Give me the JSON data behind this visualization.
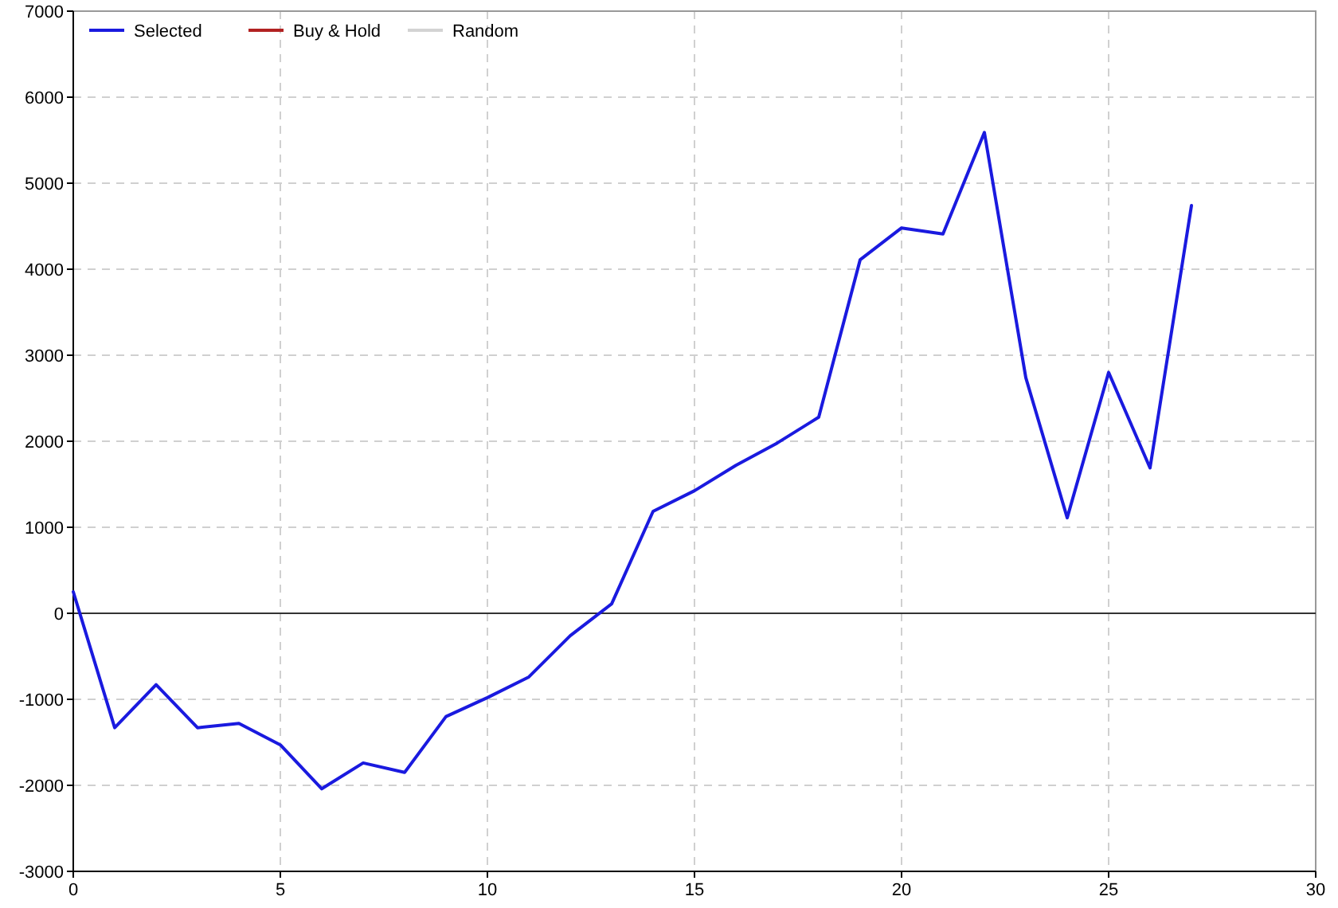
{
  "chart_data": {
    "type": "line",
    "x": [
      0,
      1,
      2,
      3,
      4,
      5,
      6,
      7,
      8,
      9,
      10,
      11,
      12,
      13,
      14,
      15,
      16,
      17,
      18,
      19,
      20,
      21,
      22,
      23,
      24,
      25,
      26,
      27
    ],
    "series": [
      {
        "name": "Selected",
        "color": "#1a1adf",
        "values": [
          250,
          -1330,
          -830,
          -1330,
          -1280,
          -1530,
          -2040,
          -1740,
          -1850,
          -1200,
          -980,
          -740,
          -260,
          110,
          1185,
          1425,
          1720,
          1980,
          2280,
          4110,
          4480,
          4410,
          5590,
          2740,
          1110,
          2800,
          1690,
          4740
        ]
      },
      {
        "name": "Buy & Hold",
        "color": "#b22222",
        "values": [
          null,
          null,
          null,
          null,
          null,
          null,
          null,
          null,
          null,
          null,
          null,
          null,
          null,
          null,
          null,
          null,
          null,
          null,
          null,
          null,
          null,
          null,
          null,
          null,
          null,
          null,
          null,
          null
        ]
      },
      {
        "name": "Random",
        "color": "#d3d3d3",
        "values": [
          null,
          null,
          null,
          null,
          null,
          null,
          null,
          null,
          null,
          null,
          null,
          null,
          null,
          null,
          null,
          null,
          null,
          null,
          null,
          null,
          null,
          null,
          null,
          null,
          null,
          null,
          null,
          null
        ]
      }
    ],
    "xlim": [
      0,
      30
    ],
    "xticks": [
      0,
      5,
      10,
      15,
      20,
      25,
      30
    ],
    "ylim": [
      -3000,
      7000
    ],
    "yticks": [
      -3000,
      -2000,
      -1000,
      0,
      1000,
      2000,
      3000,
      4000,
      5000,
      6000,
      7000
    ],
    "ref_lines": [
      {
        "axis": "y",
        "value": 0,
        "color": "#333333",
        "line_style": "solid"
      }
    ],
    "grid": true,
    "legend": "top left",
    "line_style": "solid",
    "marker": "none"
  }
}
